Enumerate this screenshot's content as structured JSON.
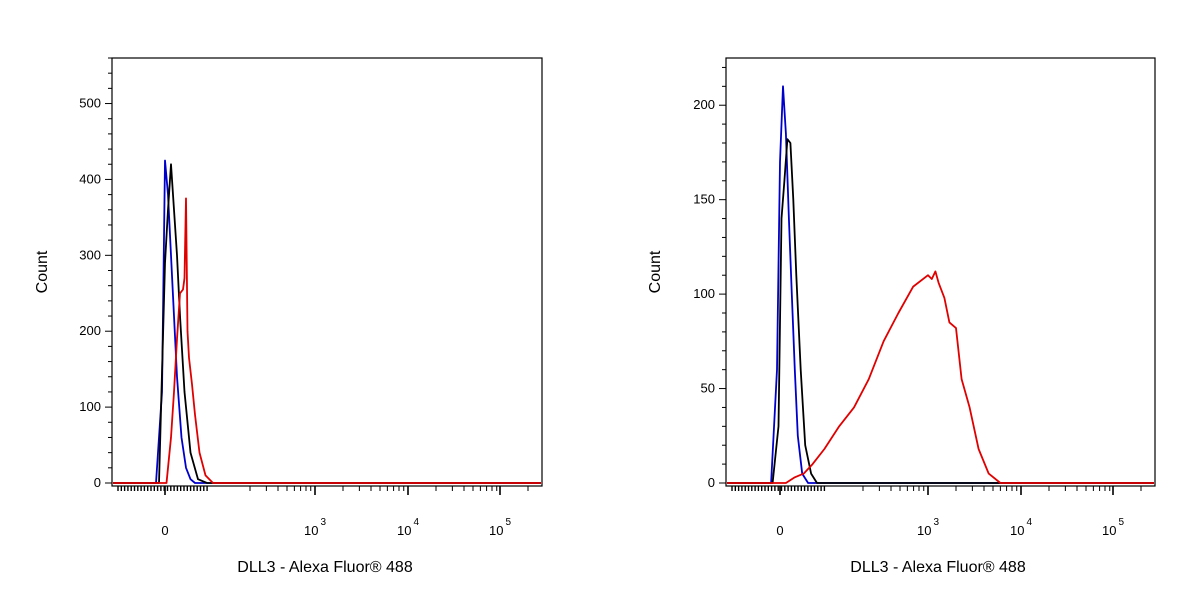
{
  "chart_data": [
    {
      "type": "line",
      "xlabel": "DLL3 - Alexa Fluor® 488",
      "ylabel": "Count",
      "xscale": "biexponential",
      "x_ticks": [
        {
          "base": "0",
          "exp": ""
        },
        {
          "base": "10",
          "exp": "3"
        },
        {
          "base": "10",
          "exp": "4"
        },
        {
          "base": "10",
          "exp": "5"
        }
      ],
      "ylim": [
        0,
        560
      ],
      "y_ticks": [
        0,
        100,
        200,
        300,
        400,
        500
      ],
      "grid": false,
      "series": [
        {
          "color": "#0000cc",
          "x": [
            -60,
            -20,
            0,
            20,
            50,
            80,
            110,
            140,
            170,
            200
          ],
          "y": [
            0,
            120,
            425,
            380,
            260,
            140,
            60,
            20,
            5,
            0
          ]
        },
        {
          "color": "#000000",
          "x": [
            -40,
            0,
            20,
            40,
            60,
            80,
            100,
            130,
            170,
            220,
            280
          ],
          "y": [
            0,
            290,
            360,
            420,
            360,
            300,
            220,
            120,
            40,
            5,
            0
          ]
        },
        {
          "color": "#e00000",
          "x": [
            10,
            40,
            60,
            80,
            100,
            120,
            130,
            140,
            150,
            160,
            180,
            200,
            230,
            270,
            320
          ],
          "y": [
            0,
            60,
            120,
            190,
            250,
            255,
            270,
            375,
            200,
            165,
            130,
            90,
            40,
            10,
            0
          ]
        }
      ]
    },
    {
      "type": "line",
      "xlabel": "DLL3 - Alexa Fluor® 488",
      "ylabel": "Count",
      "xscale": "biexponential",
      "x_ticks": [
        {
          "base": "0",
          "exp": ""
        },
        {
          "base": "10",
          "exp": "3"
        },
        {
          "base": "10",
          "exp": "4"
        },
        {
          "base": "10",
          "exp": "5"
        }
      ],
      "ylim": [
        0,
        225
      ],
      "y_ticks": [
        0,
        50,
        100,
        150,
        200
      ],
      "grid": false,
      "series": [
        {
          "color": "#0000cc",
          "x": [
            -60,
            -20,
            0,
            20,
            40,
            60,
            80,
            100,
            120,
            150,
            190
          ],
          "y": [
            0,
            60,
            170,
            210,
            185,
            140,
            100,
            60,
            25,
            5,
            0
          ]
        },
        {
          "color": "#000000",
          "x": [
            -50,
            -10,
            10,
            30,
            50,
            70,
            90,
            110,
            140,
            170,
            210,
            250
          ],
          "y": [
            0,
            30,
            140,
            160,
            182,
            180,
            150,
            110,
            60,
            20,
            5,
            0
          ]
        },
        {
          "color": "#e00000",
          "x": [
            40,
            100,
            160,
            220,
            300,
            400,
            500,
            600,
            700,
            800,
            900,
            1000,
            1100,
            1200,
            1300,
            1500,
            1700,
            2000,
            2300,
            2800,
            3500,
            4500,
            6000
          ],
          "y": [
            0,
            3,
            5,
            10,
            18,
            30,
            40,
            55,
            75,
            90,
            104,
            110,
            108,
            112,
            106,
            98,
            85,
            82,
            55,
            40,
            18,
            5,
            0
          ]
        }
      ]
    }
  ]
}
